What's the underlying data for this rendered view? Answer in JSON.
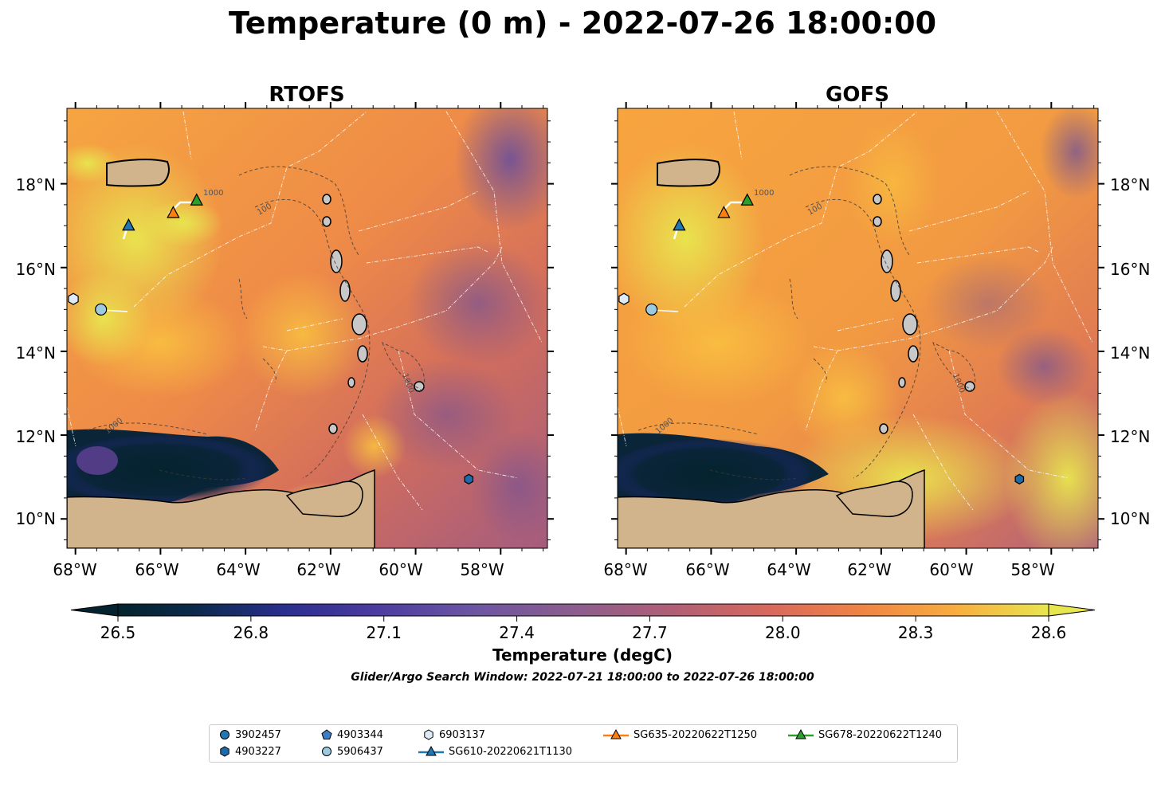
{
  "title": "Temperature (0 m) - 2022-07-26 18:00:00",
  "panels": [
    {
      "title": "RTOFS",
      "model": "rtofs"
    },
    {
      "title": "GOFS",
      "model": "gofs"
    }
  ],
  "axes": {
    "x_ticks": [
      "68°W",
      "66°W",
      "64°W",
      "62°W",
      "60°W",
      "58°W"
    ],
    "y_ticks": [
      "18°N",
      "16°N",
      "14°N",
      "12°N",
      "10°N"
    ],
    "lon_range": [
      -68.2,
      -56.9
    ],
    "lat_range": [
      9.3,
      19.8
    ]
  },
  "colorbar": {
    "label": "Temperature (degC)",
    "ticks": [
      "26.5",
      "26.8",
      "27.1",
      "27.4",
      "27.7",
      "28.0",
      "28.3",
      "28.6"
    ],
    "min": 26.5,
    "max": 28.6,
    "extend": "both",
    "colormap": "thermal"
  },
  "search_window": "Glider/Argo Search Window: 2022-07-21 18:00:00 to 2022-07-26 18:00:00",
  "contour_labels": [
    "1000",
    "100"
  ],
  "colors": {
    "land": "#d2b48c",
    "coastline": "#000000",
    "rivers": "#9dbad6",
    "eez_lines": "#ffffff",
    "bathymetry_contours": "#3a3a3a"
  },
  "legend": {
    "items": [
      {
        "label": "3902457",
        "marker": "circle",
        "color": "#1f77b4"
      },
      {
        "label": "4903227",
        "marker": "hexagon",
        "color": "#1f6aa8"
      },
      {
        "label": "4903344",
        "marker": "pentagon",
        "color": "#3d7ec0"
      },
      {
        "label": "5906437",
        "marker": "circle",
        "color": "#9ecae1"
      },
      {
        "label": "6903137",
        "marker": "hexagon",
        "color": "#deebf7"
      },
      {
        "label": "SG610-20220621T1130",
        "marker": "triangle-line",
        "color": "#1f77b4"
      },
      {
        "label": "SG635-20220622T1250",
        "marker": "triangle-line",
        "color": "#ff7f0e"
      },
      {
        "label": "SG678-20220622T1240",
        "marker": "triangle-line",
        "color": "#2ca02c"
      }
    ]
  },
  "platforms": [
    {
      "id": "SG610-20220621T1130",
      "type": "glider",
      "lon": -66.75,
      "lat": 17.0,
      "color": "#1f77b4"
    },
    {
      "id": "SG635-20220622T1250",
      "type": "glider",
      "lon": -65.7,
      "lat": 17.3,
      "color": "#ff7f0e"
    },
    {
      "id": "SG678-20220622T1240",
      "type": "glider",
      "lon": -65.15,
      "lat": 17.6,
      "color": "#2ca02c"
    },
    {
      "id": "6903137",
      "type": "argo",
      "lon": -68.05,
      "lat": 15.25,
      "color": "#deebf7"
    },
    {
      "id": "5906437",
      "type": "argo",
      "lon": -67.4,
      "lat": 15.0,
      "color": "#9ecae1"
    },
    {
      "id": "4903227",
      "type": "argo",
      "lon": -58.75,
      "lat": 10.95,
      "color": "#1f6aa8"
    }
  ]
}
